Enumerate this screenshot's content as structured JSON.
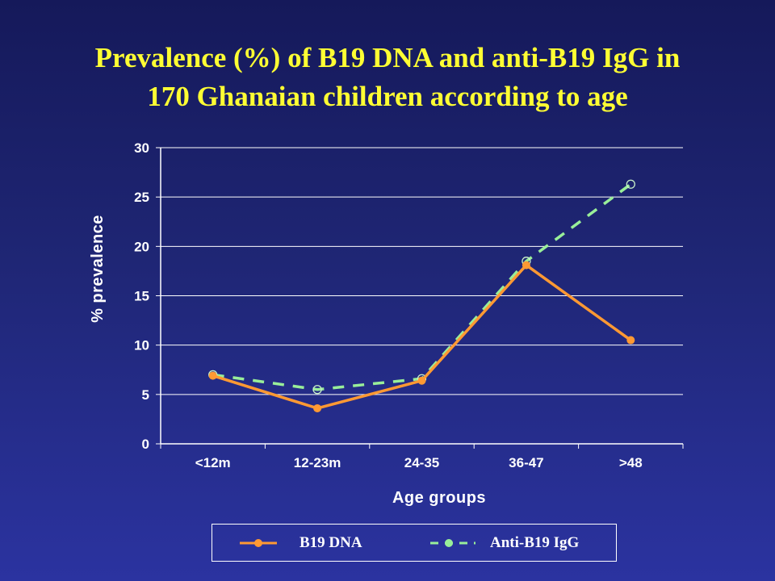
{
  "title": {
    "line1": "Prevalence (%) of B19 DNA and anti-B19 IgG in",
    "line2": "170 Ghanaian children according to age"
  },
  "chart_data": {
    "type": "line",
    "categories": [
      "<12m",
      "12-23m",
      "24-35",
      "36-47",
      ">48"
    ],
    "series": [
      {
        "name": "B19 DNA",
        "values": [
          6.9,
          3.6,
          6.4,
          18.1,
          10.5
        ],
        "color": "#ff9933",
        "line_style": "solid",
        "marker": "filled-circle"
      },
      {
        "name": "Anti-B19 IgG",
        "values": [
          7.0,
          5.5,
          6.6,
          18.5,
          26.3
        ],
        "color": "#99ee99",
        "line_style": "dashed",
        "marker": "hollow-circle"
      }
    ],
    "xlabel": "Age groups",
    "ylabel": "% prevalence",
    "ylim": [
      0,
      30
    ],
    "yticks": [
      0,
      5,
      10,
      15,
      20,
      25,
      30
    ],
    "grid": true,
    "legend_position": "bottom"
  }
}
